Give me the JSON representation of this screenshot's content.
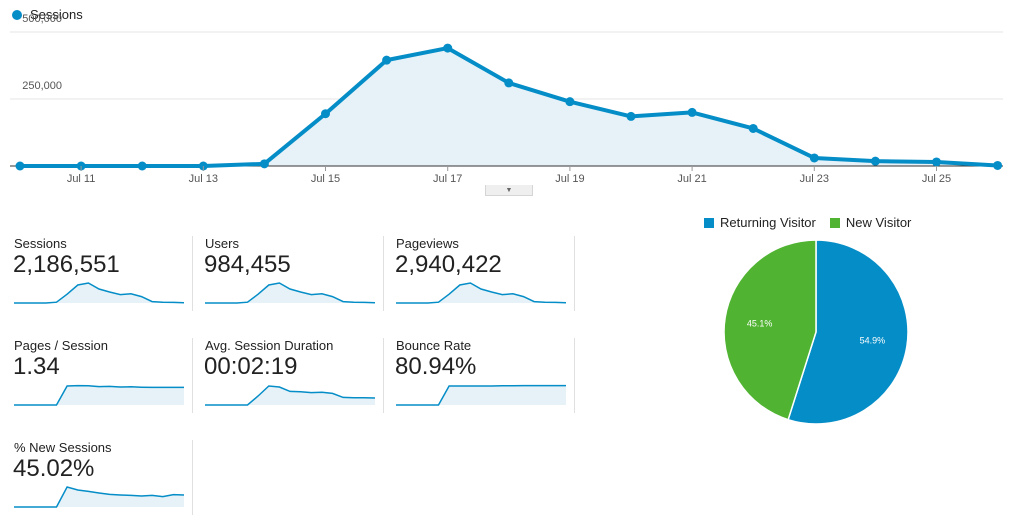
{
  "chart_data": [
    {
      "type": "line",
      "title": "",
      "series_name": "Sessions",
      "x": [
        "Jul 10",
        "Jul 11",
        "Jul 12",
        "Jul 13",
        "Jul 14",
        "Jul 15",
        "Jul 16",
        "Jul 17",
        "Jul 18",
        "Jul 19",
        "Jul 20",
        "Jul 21",
        "Jul 22",
        "Jul 23",
        "Jul 24",
        "Jul 25",
        "Jul 26"
      ],
      "values": [
        0,
        0,
        0,
        0,
        8000,
        195000,
        395000,
        440000,
        310000,
        240000,
        185000,
        200000,
        140000,
        30000,
        18000,
        15000,
        2000
      ],
      "xtick_labels": [
        "Jul 11",
        "Jul 13",
        "Jul 15",
        "Jul 17",
        "Jul 19",
        "Jul 21",
        "Jul 23",
        "Jul 25"
      ],
      "ytick_labels": [
        "500,000",
        "250,000"
      ],
      "ylim": [
        0,
        500000
      ],
      "color": "#058dc7"
    },
    {
      "type": "pie",
      "labels": [
        "Returning Visitor",
        "New Visitor"
      ],
      "values": [
        54.9,
        45.1
      ],
      "value_labels": [
        "54.9%",
        "45.1%"
      ],
      "colors": [
        "#058dc7",
        "#50b432"
      ]
    }
  ],
  "metrics": [
    {
      "label": "Sessions",
      "value": "2,186,551",
      "spark": [
        0,
        0,
        0,
        0,
        4,
        44,
        90,
        100,
        70,
        55,
        42,
        46,
        32,
        7,
        4,
        3,
        1
      ]
    },
    {
      "label": "Users",
      "value": "984,455",
      "spark": [
        0,
        0,
        0,
        0,
        4,
        44,
        90,
        100,
        70,
        55,
        42,
        46,
        32,
        7,
        4,
        3,
        1
      ]
    },
    {
      "label": "Pageviews",
      "value": "2,940,422",
      "spark": [
        0,
        0,
        0,
        0,
        4,
        44,
        90,
        100,
        70,
        55,
        42,
        46,
        32,
        7,
        4,
        3,
        1
      ]
    },
    {
      "label": "Pages / Session",
      "value": "1.34",
      "spark": [
        0,
        0,
        0,
        0,
        0,
        95,
        97,
        96,
        92,
        93,
        90,
        91,
        89,
        88,
        88,
        88,
        88
      ]
    },
    {
      "label": "Avg. Session Duration",
      "value": "00:02:19",
      "spark": [
        0,
        0,
        0,
        0,
        0,
        45,
        95,
        90,
        68,
        66,
        62,
        64,
        58,
        38,
        36,
        36,
        35
      ]
    },
    {
      "label": "Bounce Rate",
      "value": "80.94%",
      "spark": [
        0,
        0,
        0,
        0,
        0,
        95,
        95,
        95,
        95,
        95,
        96,
        96,
        97,
        97,
        97,
        97,
        97
      ]
    },
    {
      "label": "% New Sessions",
      "value": "45.02%",
      "spark": [
        0,
        0,
        0,
        0,
        0,
        100,
        85,
        78,
        70,
        63,
        60,
        58,
        55,
        58,
        52,
        62,
        60
      ]
    }
  ]
}
